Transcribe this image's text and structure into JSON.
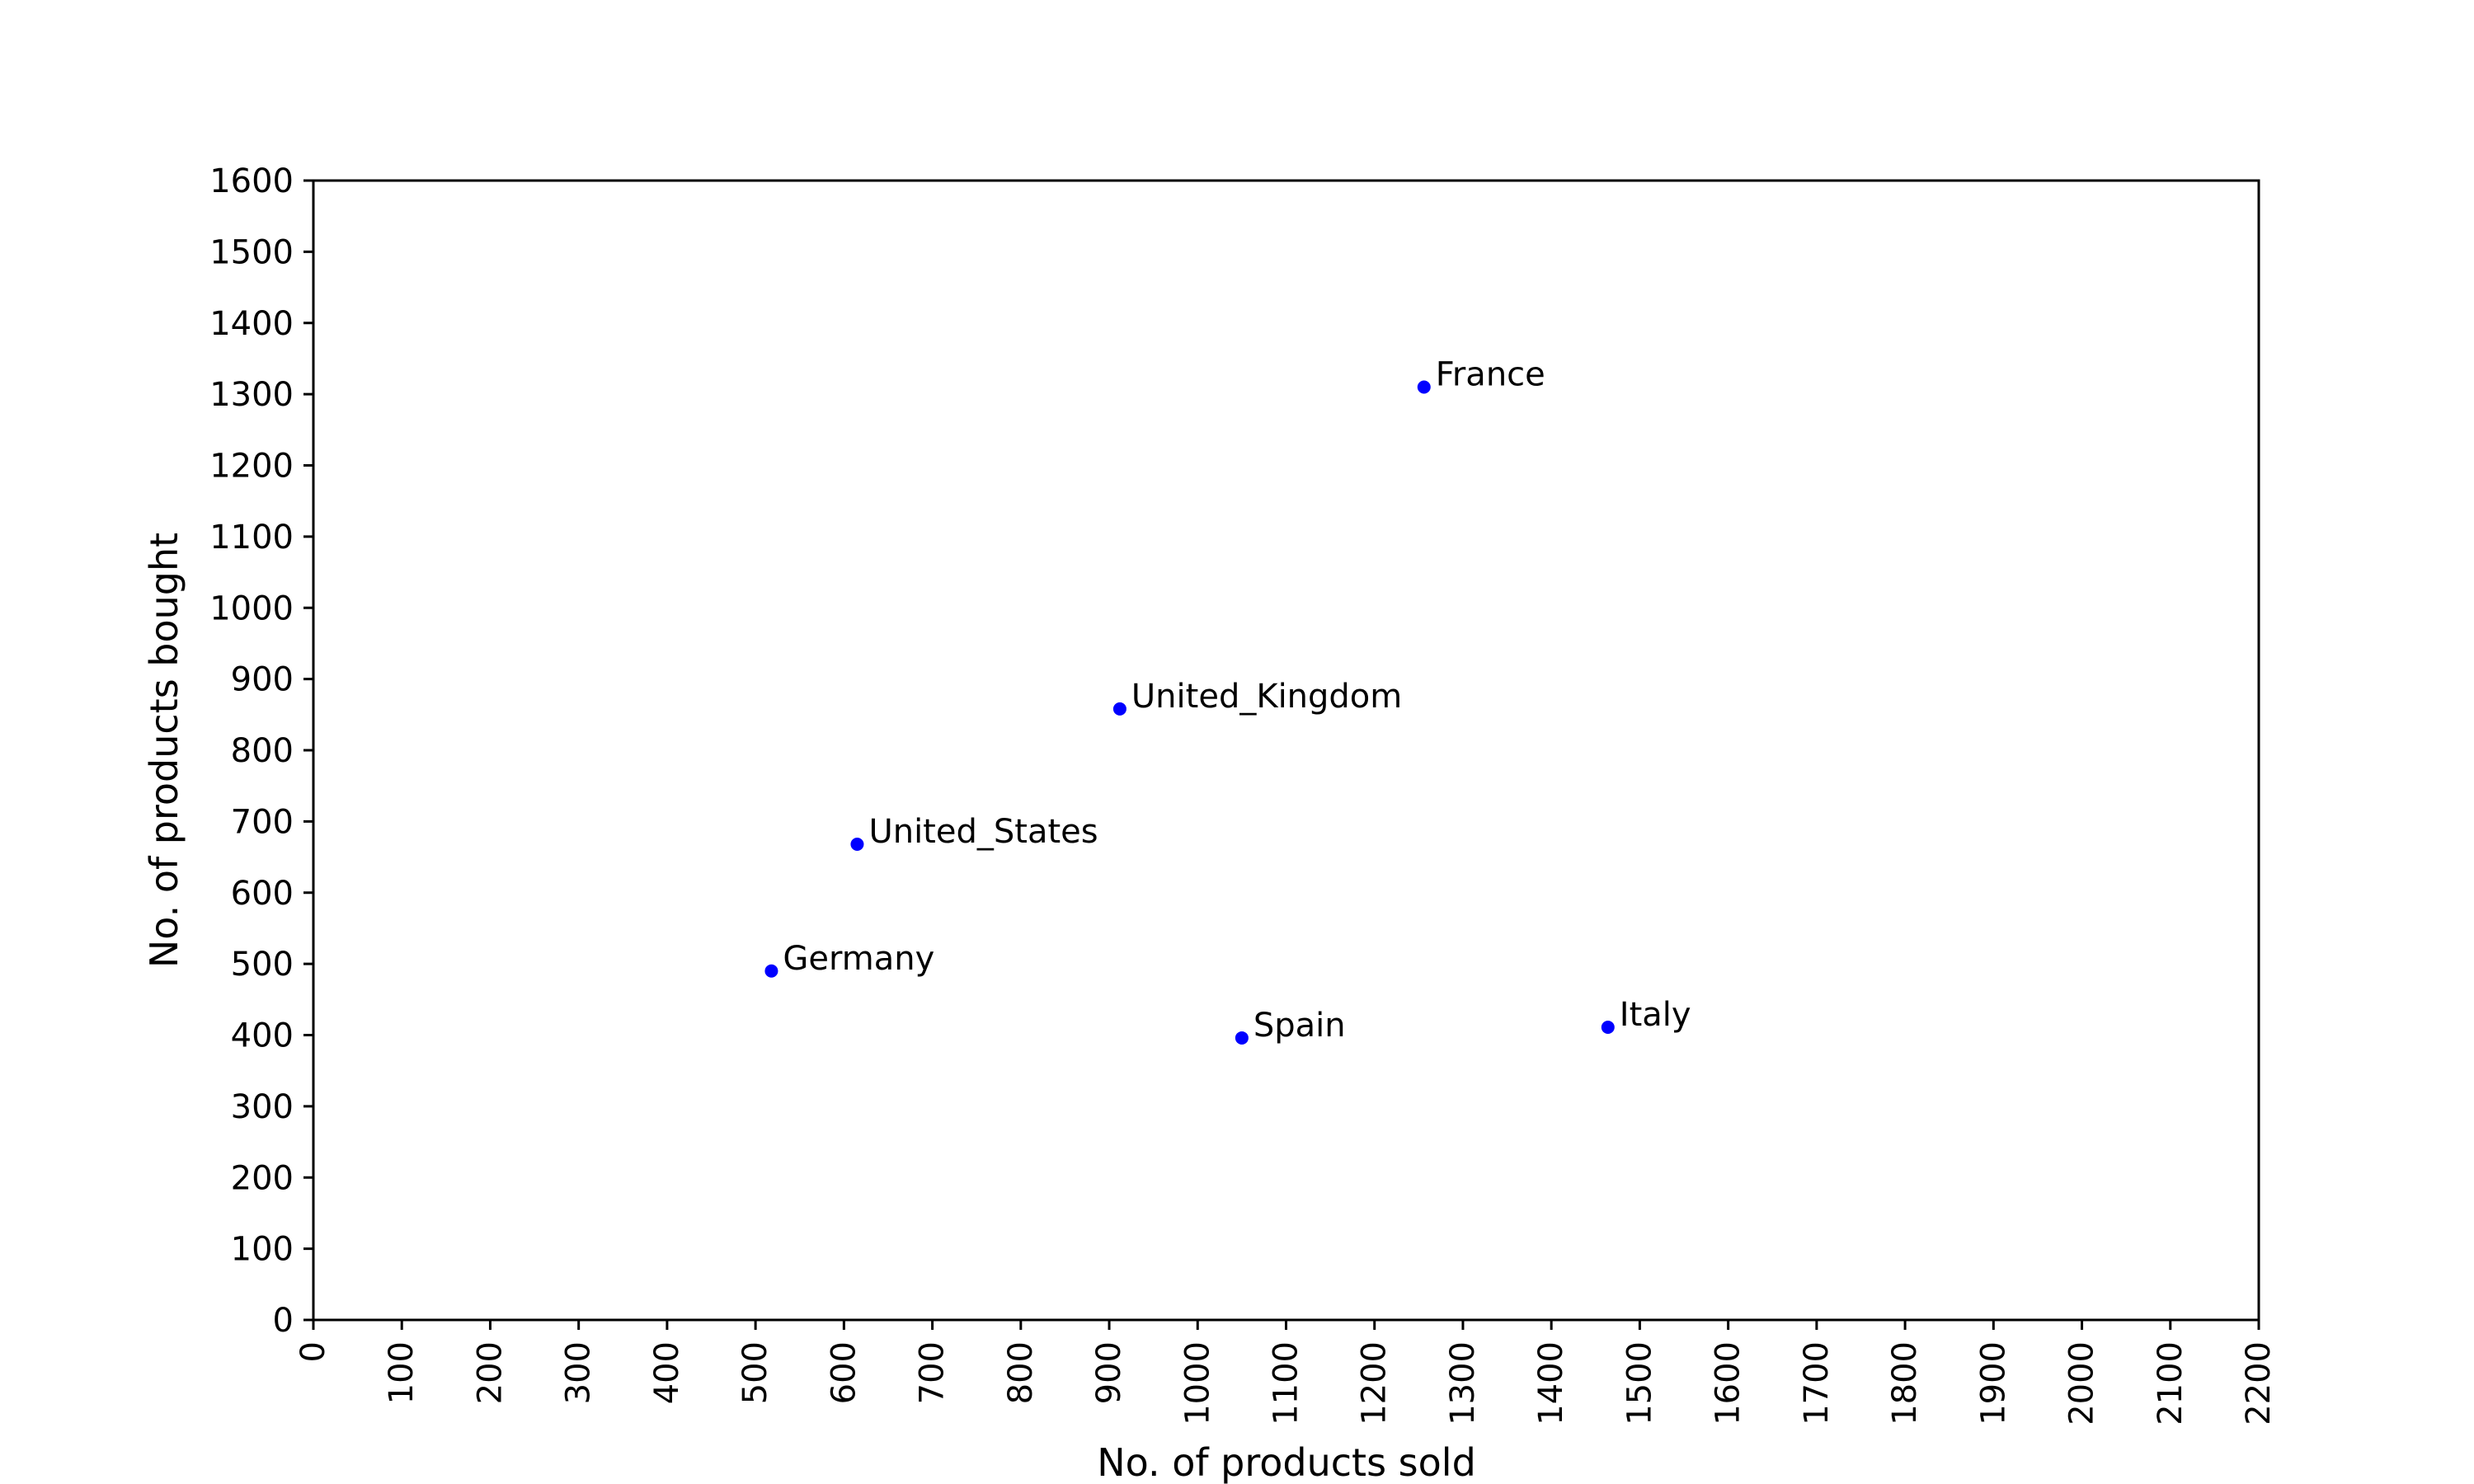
{
  "chart_data": {
    "type": "scatter",
    "title": "",
    "xlabel": "No. of products sold",
    "ylabel": "No. of products bought",
    "xlim": [
      0,
      2200
    ],
    "ylim": [
      0,
      1600
    ],
    "xticks": [
      0,
      100,
      200,
      300,
      400,
      500,
      600,
      700,
      800,
      900,
      1000,
      1100,
      1200,
      1300,
      1400,
      1500,
      1600,
      1700,
      1800,
      1900,
      2000,
      2100,
      2200
    ],
    "yticks": [
      0,
      100,
      200,
      300,
      400,
      500,
      600,
      700,
      800,
      900,
      1000,
      1100,
      1200,
      1300,
      1400,
      1500,
      1600
    ],
    "grid": false,
    "marker_color": "#0000ff",
    "points": [
      {
        "label": "France",
        "x": 1256,
        "y": 1310
      },
      {
        "label": "United_Kingdom",
        "x": 912,
        "y": 858
      },
      {
        "label": "United_States",
        "x": 615,
        "y": 668
      },
      {
        "label": "Germany",
        "x": 518,
        "y": 490
      },
      {
        "label": "Spain",
        "x": 1050,
        "y": 396
      },
      {
        "label": "Italy",
        "x": 1464,
        "y": 411
      }
    ]
  }
}
